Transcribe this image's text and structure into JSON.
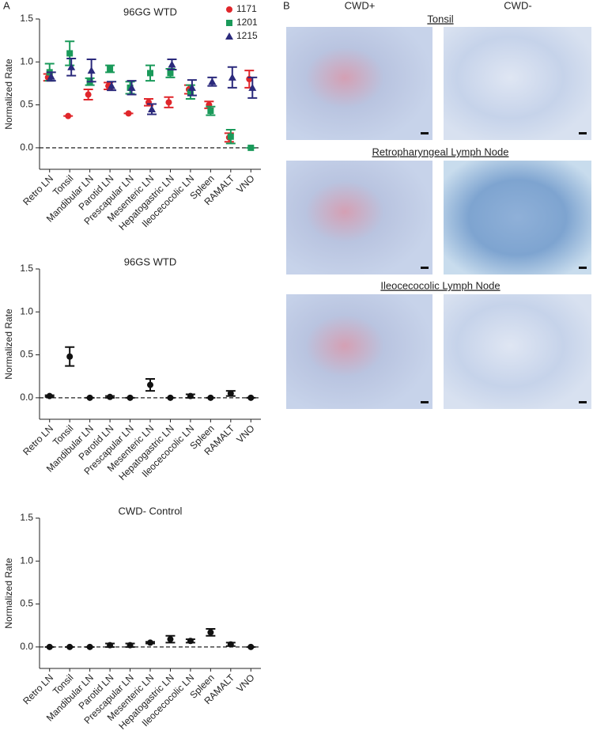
{
  "figure": {
    "panel_a": "A",
    "panel_b": "B",
    "col_left": "CWD+",
    "col_right": "CWD-",
    "rows": [
      "Tonsil",
      "Retropharyngeal Lymph Node",
      "Ileocecocolic Lymph Node"
    ]
  },
  "chart_data": [
    {
      "type": "errorbar",
      "title": "96GG WTD",
      "ylabel": "Normalized Rate",
      "categories": [
        "Retro LN",
        "Tonsil",
        "Mandibular LN",
        "Parotid LN",
        "Prescapular LN",
        "Mesenteric LN",
        "Hepatogastric LN",
        "Ileocecocolic LN",
        "Spleen",
        "RAMALT",
        "VNO"
      ],
      "series": [
        {
          "name": "1171",
          "color": "#e0262b",
          "marker": "circle",
          "values": [
            0.82,
            0.37,
            0.62,
            0.72,
            0.4,
            0.53,
            0.53,
            0.68,
            0.5,
            0.12,
            0.8
          ],
          "errors": [
            0.04,
            0,
            0.06,
            0.04,
            0,
            0.04,
            0.06,
            0.05,
            0.04,
            0.05,
            0.1
          ]
        },
        {
          "name": "1201",
          "color": "#1a9a5a",
          "marker": "square",
          "values": [
            0.88,
            1.1,
            0.77,
            0.92,
            0.7,
            0.87,
            0.87,
            0.65,
            0.43,
            0.13,
            0
          ],
          "errors": [
            0.1,
            0.14,
            0.04,
            0.04,
            0.07,
            0.09,
            0.05,
            0.08,
            0.05,
            0.08,
            0
          ]
        },
        {
          "name": "1215",
          "color": "#2b2a7c",
          "marker": "triangle",
          "values": [
            0.83,
            0.94,
            0.9,
            0.72,
            0.7,
            0.45,
            0.97,
            0.7,
            0.77,
            0.82,
            0.7
          ],
          "errors": [
            0.05,
            0.1,
            0.13,
            0.05,
            0.08,
            0.06,
            0.06,
            0.09,
            0.05,
            0.12,
            0.12
          ]
        }
      ],
      "ylim": [
        -0.25,
        1.5
      ],
      "yticks": [
        {
          "value": 0,
          "label": "0.0"
        },
        0.5,
        {
          "value": 1,
          "label": "1.0"
        },
        1.5
      ],
      "reference_line": 0,
      "legend": "top-right"
    },
    {
      "type": "errorbar",
      "title": "96GS WTD",
      "ylabel": "Normalized Rate",
      "categories": [
        "Retro LN",
        "Tonsil",
        "Mandibular LN",
        "Parotid LN",
        "Prescapular LN",
        "Mesenteric LN",
        "Hepatogastric LN",
        "Ileocecocolic LN",
        "Spleen",
        "RAMALT",
        "VNO"
      ],
      "series": [
        {
          "color": "#111111",
          "marker": "circle",
          "values": [
            0.02,
            0.48,
            0,
            0.01,
            0,
            0.15,
            0,
            0.02,
            0,
            0.05,
            0
          ],
          "errors": [
            0.01,
            0.11,
            0,
            0.01,
            0,
            0.07,
            0,
            0.02,
            0,
            0.03,
            0
          ]
        }
      ],
      "ylim": [
        -0.25,
        1.5
      ],
      "yticks": [
        {
          "value": 0,
          "label": "0.0"
        },
        0.5,
        {
          "value": 1,
          "label": "1.0"
        },
        1.5
      ],
      "reference_line": 0
    },
    {
      "type": "errorbar",
      "title": "CWD- Control",
      "ylabel": "Normalized Rate",
      "categories": [
        "Retro LN",
        "Tonsil",
        "Mandibular LN",
        "Parotid LN",
        "Prescapular LN",
        "Mesenteric LN",
        "Hepatogastric LN",
        "Ileocecocolic LN",
        "Spleen",
        "RAMALT",
        "VNO"
      ],
      "series": [
        {
          "color": "#111111",
          "marker": "circle",
          "values": [
            0,
            0,
            0,
            0.02,
            0.02,
            0.05,
            0.09,
            0.07,
            0.17,
            0.03,
            0
          ],
          "errors": [
            0,
            0,
            0,
            0.02,
            0.02,
            0.01,
            0.04,
            0.02,
            0.04,
            0.02,
            0
          ]
        }
      ],
      "ylim": [
        -0.25,
        1.5
      ],
      "yticks": [
        {
          "value": 0,
          "label": "0.0"
        },
        0.5,
        {
          "value": 1,
          "label": "1.0"
        },
        1.5
      ],
      "reference_line": 0
    }
  ]
}
